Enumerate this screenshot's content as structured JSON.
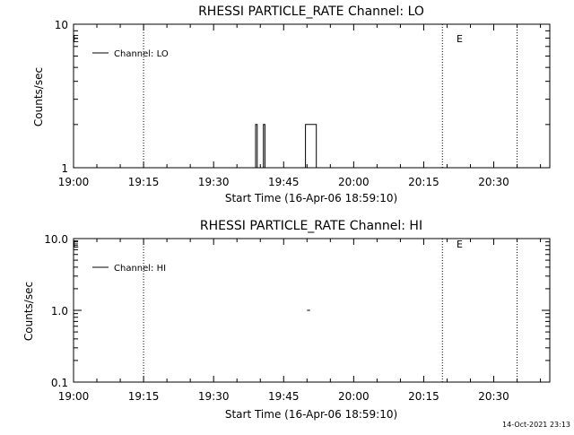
{
  "footer": {
    "timestamp": "14-Oct-2021 23:13"
  },
  "chart_data": [
    {
      "type": "line",
      "title": "RHESSI PARTICLE_RATE Channel: LO",
      "xlabel": "Start Time (16-Apr-06 18:59:10)",
      "ylabel": "Counts/sec",
      "y_scale": "log",
      "ylim": [
        1,
        10
      ],
      "y_ticks": [
        "1",
        "10"
      ],
      "x_ticks": [
        "19:00",
        "19:15",
        "19:30",
        "19:45",
        "20:00",
        "20:15",
        "20:30"
      ],
      "legend": "top-left",
      "vlines": [
        "19:15",
        "20:19",
        "20:35"
      ],
      "edge_marks": [
        "E",
        "E"
      ],
      "series": [
        {
          "name": "Channel: LO",
          "points": [
            [
              "19:39:00",
              1
            ],
            [
              "19:39:00",
              2
            ],
            [
              "19:39:20",
              2
            ],
            [
              "19:39:20",
              1
            ],
            [
              "19:40:40",
              1
            ],
            [
              "19:40:40",
              2
            ],
            [
              "19:41:00",
              2
            ],
            [
              "19:41:00",
              1
            ],
            [
              "19:49:40",
              1
            ],
            [
              "19:49:40",
              2
            ],
            [
              "19:52:00",
              2
            ],
            [
              "19:52:00",
              1
            ]
          ]
        }
      ]
    },
    {
      "type": "line",
      "title": "RHESSI PARTICLE_RATE Channel: HI",
      "xlabel": "Start Time (16-Apr-06 18:59:10)",
      "ylabel": "Counts/sec",
      "y_scale": "log",
      "ylim": [
        0.1,
        10
      ],
      "y_ticks": [
        "0.1",
        "1.0",
        "10.0"
      ],
      "x_ticks": [
        "19:00",
        "19:15",
        "19:30",
        "19:45",
        "20:00",
        "20:15",
        "20:30"
      ],
      "legend": "top-left",
      "vlines": [
        "19:15",
        "20:19",
        "20:35"
      ],
      "edge_marks": [
        "E",
        "E"
      ],
      "series": [
        {
          "name": "Channel: HI",
          "points": [
            [
              "19:50:00",
              1
            ],
            [
              "19:50:40",
              1
            ]
          ]
        }
      ]
    }
  ]
}
